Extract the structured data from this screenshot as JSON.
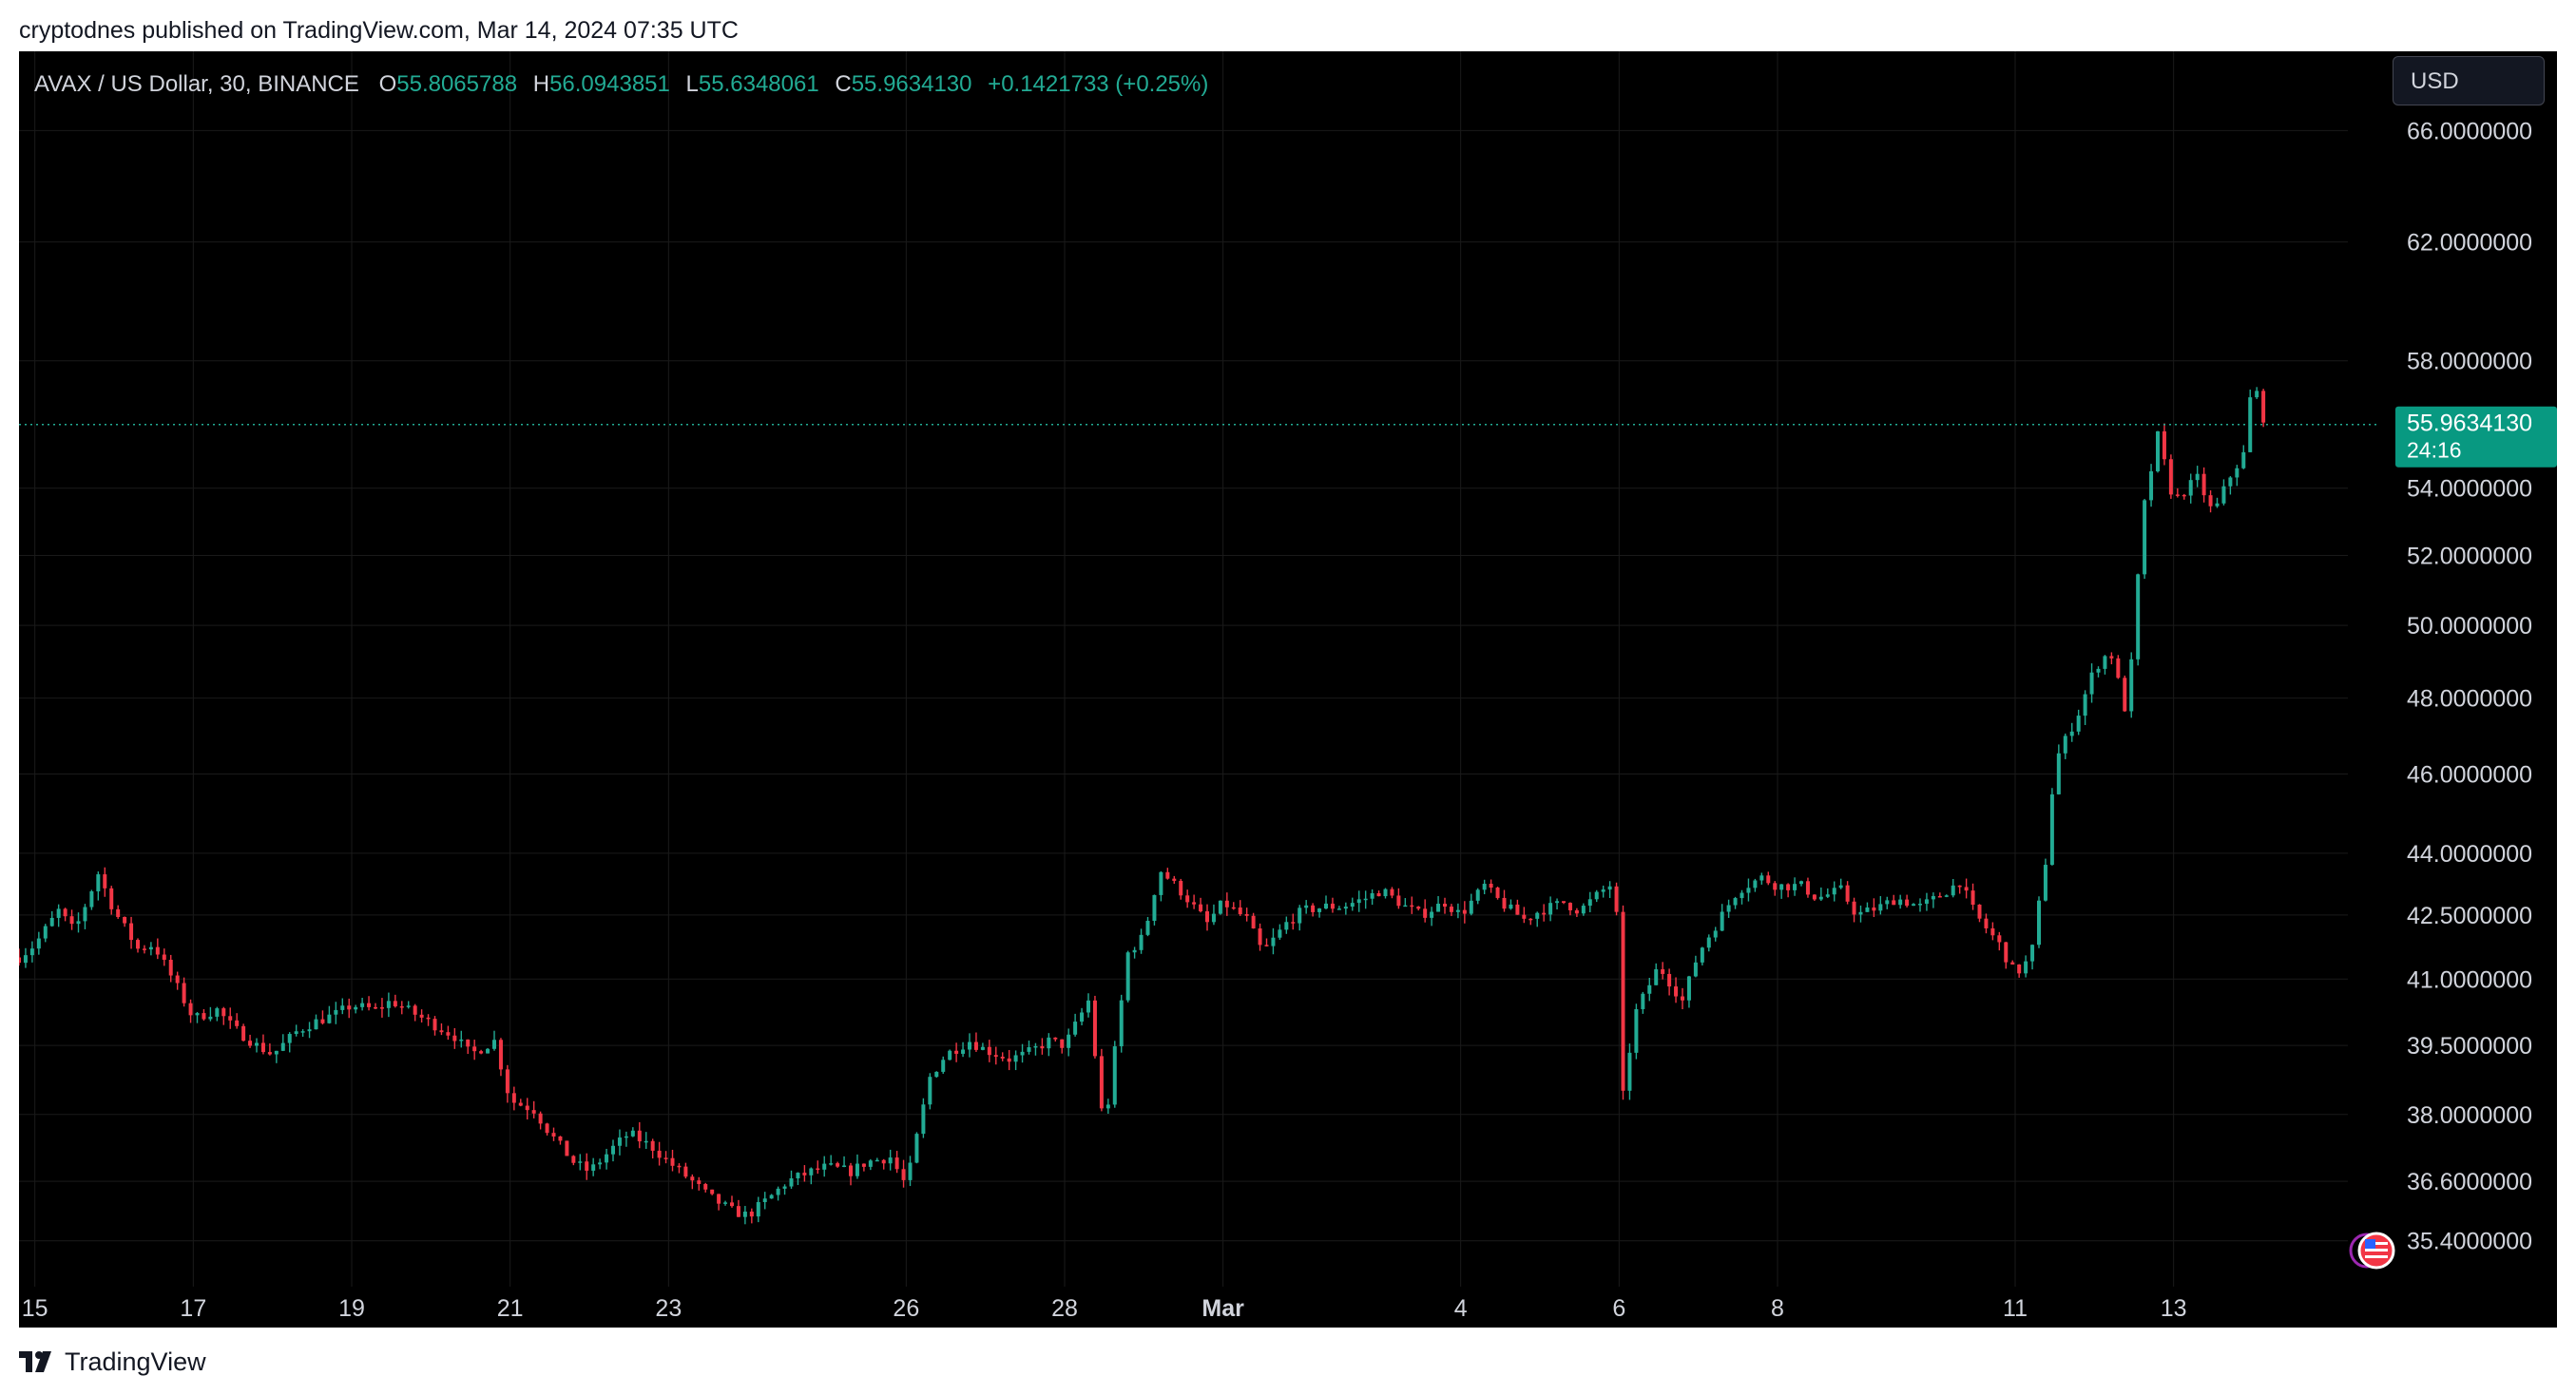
{
  "caption": "cryptodnes published on TradingView.com, Mar 14, 2024 07:35 UTC",
  "legend": {
    "symbol": "AVAX / US Dollar, 30, BINANCE",
    "o_label": "O",
    "o_value": "55.8065788",
    "h_label": "H",
    "h_value": "56.0943851",
    "l_label": "L",
    "l_value": "55.6348061",
    "c_label": "C",
    "c_value": "55.9634130",
    "change": "+0.1421733 (+0.25%)"
  },
  "currency": "USD",
  "price_tag": {
    "price": "55.9634130",
    "countdown": "24:16"
  },
  "brand": "TradingView",
  "colors": {
    "up": "#22ab94",
    "down": "#f23645",
    "background": "#000000",
    "axis_text": "#d1d4dc",
    "price_tag_bg": "#089981"
  },
  "icons": [
    "tradingview-logo-icon",
    "us-flag-icon",
    "events-icon"
  ],
  "chart_data": {
    "type": "candlestick",
    "interval": "30",
    "exchange": "BINANCE",
    "y_scale": "log",
    "ylim": [
      34.5,
      69.0
    ],
    "y_ticks": [
      66.0,
      62.0,
      58.0,
      54.0,
      52.0,
      50.0,
      48.0,
      46.0,
      44.0,
      42.5,
      41.0,
      39.5,
      38.0,
      36.6,
      35.4
    ],
    "y_tick_labels": [
      "66.0000000",
      "62.0000000",
      "58.0000000",
      "54.0000000",
      "52.0000000",
      "50.0000000",
      "48.0000000",
      "46.0000000",
      "44.0000000",
      "42.5000000",
      "41.0000000",
      "39.5000000",
      "38.0000000",
      "36.6000000",
      "35.4000000"
    ],
    "x_ticks": [
      {
        "label": "15",
        "day": 15.0,
        "bold": false
      },
      {
        "label": "17",
        "day": 17.0,
        "bold": false
      },
      {
        "label": "19",
        "day": 19.0,
        "bold": false
      },
      {
        "label": "21",
        "day": 21.0,
        "bold": false
      },
      {
        "label": "23",
        "day": 23.0,
        "bold": false
      },
      {
        "label": "26",
        "day": 26.0,
        "bold": false
      },
      {
        "label": "28",
        "day": 28.0,
        "bold": false
      },
      {
        "label": "Mar",
        "day": 30.0,
        "bold": true
      },
      {
        "label": "4",
        "day": 33.0,
        "bold": false
      },
      {
        "label": "6",
        "day": 35.0,
        "bold": false
      },
      {
        "label": "8",
        "day": 37.0,
        "bold": false
      },
      {
        "label": "11",
        "day": 40.0,
        "bold": false
      },
      {
        "label": "13",
        "day": 42.0,
        "bold": false
      }
    ],
    "x_range_days": [
      14.8,
      44.2
    ],
    "bars_per_day": 48,
    "last_price": 55.963413,
    "close_path": [
      [
        14.8,
        41.5
      ],
      [
        15.0,
        41.8
      ],
      [
        15.3,
        42.6
      ],
      [
        15.5,
        42.1
      ],
      [
        15.8,
        43.5
      ],
      [
        16.0,
        42.6
      ],
      [
        16.3,
        41.7
      ],
      [
        16.5,
        41.8
      ],
      [
        16.8,
        40.8
      ],
      [
        17.0,
        40.1
      ],
      [
        17.3,
        40.3
      ],
      [
        17.5,
        39.9
      ],
      [
        17.8,
        39.5
      ],
      [
        18.0,
        39.3
      ],
      [
        18.3,
        39.8
      ],
      [
        18.5,
        40.0
      ],
      [
        18.8,
        40.2
      ],
      [
        19.0,
        40.4
      ],
      [
        19.3,
        40.3
      ],
      [
        19.5,
        40.5
      ],
      [
        19.8,
        40.2
      ],
      [
        20.0,
        40.0
      ],
      [
        20.3,
        39.7
      ],
      [
        20.5,
        39.3
      ],
      [
        20.8,
        39.6
      ],
      [
        21.0,
        38.3
      ],
      [
        21.3,
        38.1
      ],
      [
        21.5,
        37.6
      ],
      [
        21.8,
        37.0
      ],
      [
        22.0,
        36.8
      ],
      [
        22.3,
        37.3
      ],
      [
        22.5,
        37.6
      ],
      [
        22.8,
        37.3
      ],
      [
        23.0,
        37.0
      ],
      [
        23.3,
        36.6
      ],
      [
        23.5,
        36.3
      ],
      [
        23.8,
        36.0
      ],
      [
        24.0,
        35.9
      ],
      [
        24.3,
        36.3
      ],
      [
        24.5,
        36.6
      ],
      [
        24.8,
        36.8
      ],
      [
        25.0,
        36.9
      ],
      [
        25.3,
        36.8
      ],
      [
        25.5,
        37.0
      ],
      [
        25.8,
        37.1
      ],
      [
        26.0,
        36.5
      ],
      [
        26.3,
        38.8
      ],
      [
        26.5,
        39.3
      ],
      [
        26.8,
        39.6
      ],
      [
        27.0,
        39.4
      ],
      [
        27.3,
        39.2
      ],
      [
        27.5,
        39.3
      ],
      [
        27.8,
        39.6
      ],
      [
        28.0,
        39.5
      ],
      [
        28.3,
        40.5
      ],
      [
        28.5,
        37.6
      ],
      [
        28.8,
        41.6
      ],
      [
        29.0,
        42.0
      ],
      [
        29.2,
        43.6
      ],
      [
        29.5,
        43.0
      ],
      [
        29.8,
        42.3
      ],
      [
        30.0,
        42.8
      ],
      [
        30.3,
        42.4
      ],
      [
        30.5,
        41.6
      ],
      [
        30.8,
        42.3
      ],
      [
        31.0,
        42.6
      ],
      [
        31.3,
        42.7
      ],
      [
        31.5,
        42.7
      ],
      [
        31.8,
        42.9
      ],
      [
        32.0,
        43.1
      ],
      [
        32.3,
        42.7
      ],
      [
        32.5,
        42.5
      ],
      [
        32.8,
        42.8
      ],
      [
        33.0,
        42.5
      ],
      [
        33.3,
        43.2
      ],
      [
        33.5,
        42.8
      ],
      [
        33.8,
        42.4
      ],
      [
        34.0,
        42.6
      ],
      [
        34.3,
        42.8
      ],
      [
        34.5,
        42.6
      ],
      [
        34.8,
        43.1
      ],
      [
        34.95,
        43.3
      ],
      [
        35.05,
        38.4
      ],
      [
        35.2,
        40.2
      ],
      [
        35.5,
        41.3
      ],
      [
        35.8,
        40.5
      ],
      [
        36.0,
        41.6
      ],
      [
        36.3,
        42.5
      ],
      [
        36.5,
        43.1
      ],
      [
        36.8,
        43.4
      ],
      [
        37.0,
        43.2
      ],
      [
        37.3,
        43.2
      ],
      [
        37.5,
        42.9
      ],
      [
        37.8,
        43.1
      ],
      [
        38.0,
        42.5
      ],
      [
        38.3,
        42.7
      ],
      [
        38.5,
        42.9
      ],
      [
        38.8,
        42.7
      ],
      [
        39.0,
        42.9
      ],
      [
        39.3,
        43.3
      ],
      [
        39.5,
        42.5
      ],
      [
        39.8,
        41.8
      ],
      [
        40.0,
        41.1
      ],
      [
        40.2,
        41.5
      ],
      [
        40.4,
        44.0
      ],
      [
        40.5,
        46.3
      ],
      [
        40.8,
        47.6
      ],
      [
        41.0,
        48.8
      ],
      [
        41.2,
        49.3
      ],
      [
        41.4,
        47.6
      ],
      [
        41.5,
        49.6
      ],
      [
        41.6,
        53.1
      ],
      [
        41.8,
        55.6
      ],
      [
        42.0,
        53.6
      ],
      [
        42.3,
        54.3
      ],
      [
        42.5,
        53.2
      ],
      [
        42.7,
        54.3
      ],
      [
        42.9,
        55.1
      ],
      [
        43.0,
        57.6
      ],
      [
        43.1,
        56.3
      ],
      [
        43.2,
        55.9634
      ]
    ]
  }
}
